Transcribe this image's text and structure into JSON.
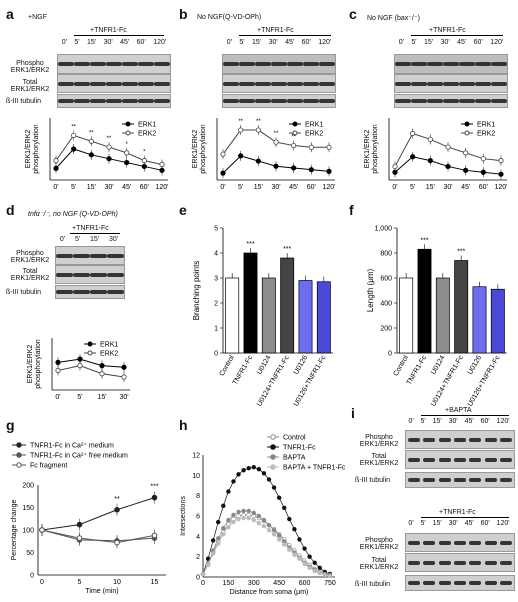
{
  "panels": {
    "a": {
      "label": "a",
      "condition": "+NGF",
      "treatment": "+TNFR1-Fc",
      "lanes": [
        "0'",
        "5'",
        "15'",
        "30'",
        "45'",
        "60'",
        "120'"
      ],
      "rows": [
        "Phospho ERK1/ERK2",
        "Total ERK1/ERK2",
        "ß-III tubulin"
      ],
      "ylabel": "ERK1/ERK2 phosphorylation",
      "legend": [
        "ERK1",
        "ERK2"
      ],
      "sig": [
        "**",
        "**",
        "**",
        "*",
        "*"
      ]
    },
    "b": {
      "label": "b",
      "condition": "No NGF(Q-VD-OPh)",
      "treatment": "+TNFR1-Fc",
      "lanes": [
        "0'",
        "5'",
        "15'",
        "30'",
        "45'",
        "60'",
        "120'"
      ],
      "rows": [
        "",
        "",
        ""
      ],
      "ylabel": "ERK1/ERK2 phosphorylation",
      "legend": [
        "ERK1",
        "ERK2"
      ],
      "sig": [
        "**",
        "**",
        "**",
        "**"
      ]
    },
    "c": {
      "label": "c",
      "condition": "No NGF (bax⁻/⁻)",
      "treatment": "+TNFR1-Fc",
      "lanes": [
        "0'",
        "5'",
        "15'",
        "30'",
        "45'",
        "60'",
        "120'"
      ],
      "ylabel": "ERK1/ERK2 phosphorylation",
      "legend": [
        "ERK1",
        "ERK2"
      ]
    },
    "d": {
      "label": "d",
      "condition": "tnfα⁻/⁻, no NGF (Q-VD-OPh)",
      "treatment": "+TNFR1-Fc",
      "lanes": [
        "0'",
        "5'",
        "15'",
        "30'"
      ],
      "rows": [
        "Phospho ERK1/ERK2",
        "Total ERK1/ERK2",
        "ß-III tubulin"
      ],
      "ylabel": "ERK1/ERK2 phosphorylation",
      "legend": [
        "ERK1",
        "ERK2"
      ]
    },
    "e": {
      "label": "e"
    },
    "f": {
      "label": "f"
    },
    "g": {
      "label": "g"
    },
    "h": {
      "label": "h"
    },
    "i": {
      "label": "i",
      "top": {
        "treatment": "+BAPTA",
        "lanes": [
          "0'",
          "5'",
          "15'",
          "30'",
          "45'",
          "60'",
          "120'"
        ],
        "rows": [
          "Phospho ERK1/ERK2",
          "Total ERK1/ERK2",
          "ß-III tubulin"
        ]
      },
      "bottom": {
        "treatment": "+TNFR1-Fc",
        "lanes": [
          "0'",
          "5'",
          "15'",
          "30'",
          "45'",
          "60'",
          "120'"
        ],
        "rows": [
          "Phospho ERK1/ERK2",
          "Total ERK1/ERK2",
          "ß-III tubulin"
        ]
      }
    }
  },
  "chart_data": [
    {
      "panel": "a",
      "type": "line",
      "x": [
        "0'",
        "5'",
        "15'",
        "30'",
        "45'",
        "60'",
        "120'"
      ],
      "series": [
        {
          "name": "ERK1",
          "values": [
            0.3,
            0.8,
            0.65,
            0.55,
            0.45,
            0.35,
            0.25
          ]
        },
        {
          "name": "ERK2",
          "values": [
            0.5,
            1.15,
            1.0,
            0.85,
            0.7,
            0.5,
            0.4
          ]
        }
      ]
    },
    {
      "panel": "b",
      "type": "line",
      "x": [
        "0'",
        "5'",
        "15'",
        "30'",
        "45'",
        "60'",
        "120'"
      ],
      "series": [
        {
          "name": "ERK1",
          "values": [
            0.2,
            0.7,
            0.55,
            0.4,
            0.35,
            0.3,
            0.25
          ]
        },
        {
          "name": "ERK2",
          "values": [
            0.75,
            1.45,
            1.45,
            1.1,
            1.0,
            0.95,
            0.95
          ]
        }
      ]
    },
    {
      "panel": "c",
      "type": "line",
      "x": [
        "0'",
        "5'",
        "15'",
        "30'",
        "45'",
        "60'",
        "120'"
      ],
      "series": [
        {
          "name": "ERK1",
          "values": [
            0.2,
            0.6,
            0.5,
            0.35,
            0.25,
            0.2,
            0.15
          ]
        },
        {
          "name": "ERK2",
          "values": [
            0.35,
            1.2,
            1.05,
            0.85,
            0.7,
            0.55,
            0.5
          ]
        }
      ]
    },
    {
      "panel": "d",
      "type": "line",
      "x": [
        "0'",
        "5'",
        "15'",
        "30'"
      ],
      "series": [
        {
          "name": "ERK1",
          "values": [
            0.85,
            0.95,
            0.75,
            0.7
          ]
        },
        {
          "name": "ERK2",
          "values": [
            0.6,
            0.75,
            0.5,
            0.4
          ]
        }
      ]
    },
    {
      "panel": "e",
      "type": "bar",
      "ylabel": "Branching points",
      "ylim": [
        0,
        5
      ],
      "yticks": [
        "0",
        "1",
        "2",
        "3",
        "4",
        "5"
      ],
      "categories": [
        "Control",
        "TNFR1-Fc",
        "U0124",
        "U0124+TNFR1-Fc",
        "U0126",
        "U0126+TNFR1-Fc"
      ],
      "values": [
        3.0,
        4.0,
        3.0,
        3.8,
        2.9,
        2.85
      ],
      "colors": [
        "#ffffff",
        "#000000",
        "#8c8c8c",
        "#444444",
        "#6d6df0",
        "#4a4ad8"
      ],
      "sig": [
        "",
        "***",
        "",
        "***",
        "",
        ""
      ]
    },
    {
      "panel": "f",
      "type": "bar",
      "ylabel": "Length (μm)",
      "ylim": [
        0,
        1000
      ],
      "yticks": [
        "0",
        "200",
        "400",
        "600",
        "800",
        "1,000"
      ],
      "categories": [
        "Control",
        "TNFR1-Fc",
        "U0124",
        "U0124+TNFR1-Fc",
        "U0126",
        "U0126+TNFR1-Fc"
      ],
      "values": [
        600,
        830,
        600,
        740,
        530,
        510
      ],
      "colors": [
        "#ffffff",
        "#000000",
        "#8c8c8c",
        "#444444",
        "#6d6df0",
        "#4a4ad8"
      ],
      "sig": [
        "",
        "***",
        "",
        "***",
        "",
        ""
      ]
    },
    {
      "panel": "g",
      "type": "line",
      "xlabel": "Time (min)",
      "ylabel": "Percentage change",
      "ylim": [
        0,
        200
      ],
      "yticks": [
        "0",
        "50",
        "100",
        "150",
        "200"
      ],
      "x": [
        0,
        5,
        10,
        15
      ],
      "series": [
        {
          "name": "TNFR1-Fc in Ca²⁺ medium",
          "values": [
            100,
            112,
            145,
            172
          ]
        },
        {
          "name": "TNFR1-Fc in Ca²⁺ free medium",
          "values": [
            100,
            78,
            76,
            82
          ]
        },
        {
          "name": "Fc fragment",
          "values": [
            100,
            82,
            72,
            88
          ]
        }
      ],
      "sig": [
        "",
        "",
        "**",
        "***"
      ]
    },
    {
      "panel": "h",
      "type": "line",
      "xlabel": "Distance from soma  (μm)",
      "ylabel": "Intersections",
      "ylim": [
        0,
        12
      ],
      "yticks": [
        "0",
        "2",
        "4",
        "6",
        "8",
        "10",
        "12"
      ],
      "xticks": [
        "0",
        "150",
        "300",
        "450",
        "600",
        "750"
      ],
      "x": [
        0,
        30,
        60,
        90,
        120,
        150,
        180,
        210,
        240,
        270,
        300,
        330,
        360,
        390,
        420,
        450,
        480,
        510,
        540,
        570,
        600,
        630,
        660,
        690,
        720,
        750
      ],
      "series": [
        {
          "name": "Control",
          "values": [
            0.3,
            1.2,
            2.4,
            3.5,
            4.4,
            5.2,
            5.7,
            6.0,
            6.1,
            6.1,
            6.0,
            5.8,
            5.5,
            5.1,
            4.7,
            4.2,
            3.7,
            3.1,
            2.6,
            2.1,
            1.6,
            1.2,
            0.8,
            0.5,
            0.3,
            0.2
          ]
        },
        {
          "name": "TNFR1-Fc",
          "values": [
            0.3,
            1.8,
            3.6,
            5.4,
            7.0,
            8.4,
            9.4,
            10.1,
            10.5,
            10.7,
            10.8,
            10.6,
            10.2,
            9.6,
            8.8,
            7.8,
            6.8,
            5.7,
            4.7,
            3.7,
            2.8,
            2.0,
            1.4,
            0.9,
            0.5,
            0.3
          ]
        },
        {
          "name": "BAPTA",
          "values": [
            0.3,
            1.3,
            2.6,
            3.8,
            4.8,
            5.6,
            6.1,
            6.4,
            6.5,
            6.5,
            6.3,
            6.0,
            5.6,
            5.1,
            4.6,
            4.1,
            3.5,
            2.9,
            2.4,
            1.9,
            1.4,
            1.0,
            0.7,
            0.4,
            0.3,
            0.2
          ]
        },
        {
          "name": "BAPTA + TNFR1-Fc",
          "values": [
            0.3,
            1.2,
            2.3,
            3.3,
            4.2,
            4.9,
            5.4,
            5.7,
            5.8,
            5.8,
            5.6,
            5.3,
            5.0,
            4.6,
            4.2,
            3.7,
            3.2,
            2.7,
            2.2,
            1.8,
            1.3,
            0.9,
            0.6,
            0.4,
            0.2,
            0.1
          ]
        }
      ]
    }
  ]
}
